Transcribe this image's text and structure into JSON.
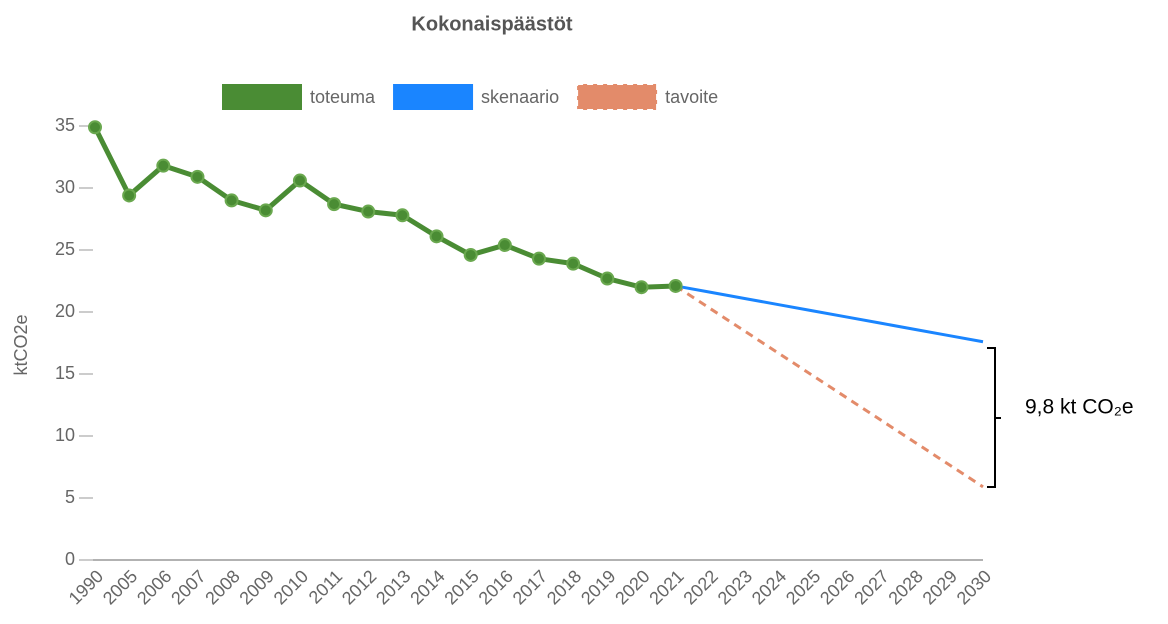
{
  "chart_data": {
    "type": "line",
    "title": "Kokonaispäästöt",
    "y_label": "ktCO2e",
    "categories": [
      "1990",
      "2005",
      "2006",
      "2007",
      "2008",
      "2009",
      "2010",
      "2011",
      "2012",
      "2013",
      "2014",
      "2015",
      "2016",
      "2017",
      "2018",
      "2019",
      "2020",
      "2021",
      "2022",
      "2023",
      "2024",
      "2025",
      "2026",
      "2027",
      "2028",
      "2029",
      "2030"
    ],
    "series": [
      {
        "name": "toteuma",
        "color": "#4a8c34",
        "markers": true,
        "dashed": false,
        "values": [
          34.9,
          29.4,
          31.8,
          30.9,
          29.0,
          28.2,
          30.6,
          28.7,
          28.1,
          27.8,
          26.1,
          24.6,
          25.4,
          24.3,
          23.9,
          22.7,
          22.0,
          22.1,
          null,
          null,
          null,
          null,
          null,
          null,
          null,
          null,
          null
        ]
      },
      {
        "name": "skenaario",
        "color": "#1a85ff",
        "markers": false,
        "dashed": false,
        "values": [
          null,
          null,
          null,
          null,
          null,
          null,
          null,
          null,
          null,
          null,
          null,
          null,
          null,
          null,
          null,
          null,
          null,
          22.1,
          21.6,
          21.1,
          20.6,
          20.1,
          19.6,
          19.1,
          18.6,
          18.1,
          17.6
        ]
      },
      {
        "name": "tavoite",
        "color": "#e38b6a",
        "markers": false,
        "dashed": true,
        "values": [
          null,
          null,
          null,
          null,
          null,
          null,
          null,
          null,
          null,
          null,
          null,
          null,
          null,
          null,
          null,
          null,
          null,
          22.1,
          20.3,
          18.5,
          16.7,
          14.9,
          13.1,
          11.3,
          9.5,
          7.7,
          5.9
        ]
      }
    ],
    "ylim": [
      0,
      35
    ],
    "yticks": [
      0,
      5,
      10,
      15,
      20,
      25,
      30,
      35
    ],
    "grid": false,
    "legend": "top",
    "annotation": "9,8 kt CO₂e"
  }
}
